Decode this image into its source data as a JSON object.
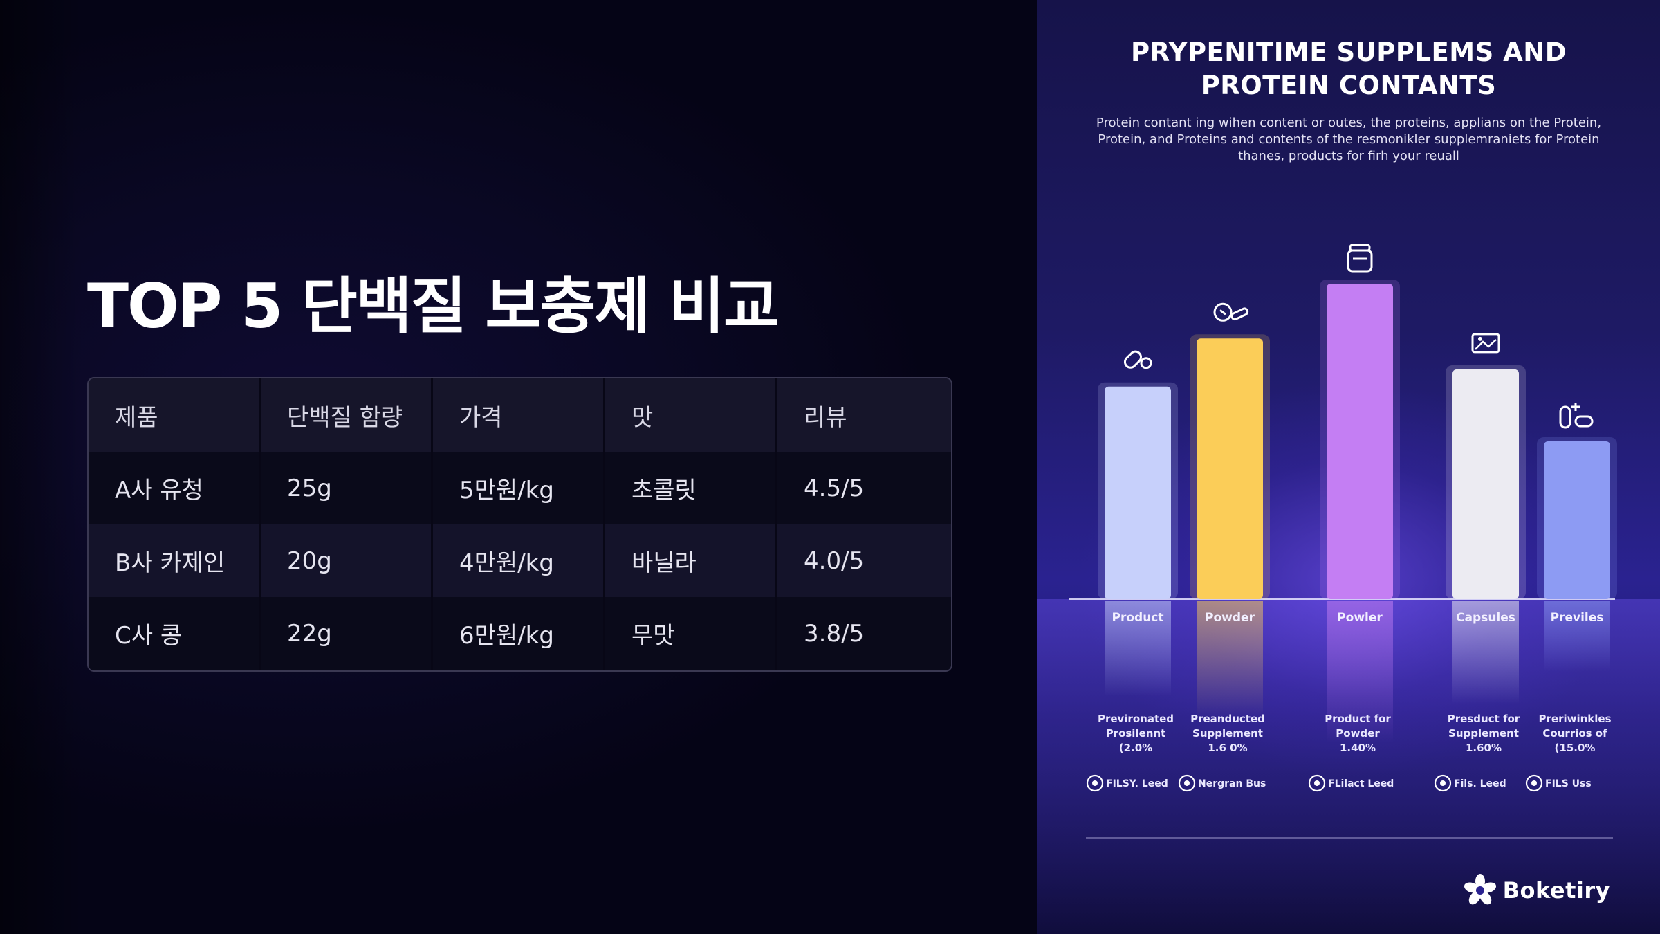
{
  "slide": {
    "title": "TOP 5 단백질 보충제 비교"
  },
  "table": {
    "headers": [
      "제품",
      "단백질 함량",
      "가격",
      "맛",
      "리뷰"
    ],
    "rows": [
      [
        "A사 유청",
        "25g",
        "5만원/kg",
        "초콜릿",
        "4.5/5"
      ],
      [
        "B사 카제인",
        "20g",
        "4만원/kg",
        "바닐라",
        "4.0/5"
      ],
      [
        "C사 콩",
        "22g",
        "6만원/kg",
        "무맛",
        "3.8/5"
      ]
    ]
  },
  "infographic": {
    "title_line1": "PRYPENITIME SUPPLEMS AND",
    "title_line2": "PROTEIN CONTANTS",
    "subtitle": "Protein contant ing wihen content or outes, the proteins, applians on the Protein, Protein, and Proteins and contents of the resmonikler supplemraniets for Protein thanes, products for firh your reuall",
    "brand": "Boketiry"
  },
  "chart_data": {
    "type": "bar",
    "categories": [
      "Product",
      "Powder",
      "Powler",
      "Capsules",
      "Previles"
    ],
    "values": [
      310,
      380,
      460,
      335,
      230
    ],
    "colors": [
      "#c7d0fb",
      "#fbcd58",
      "#c47ef3",
      "#ecebf2",
      "#8d9bf3"
    ],
    "icons": [
      "pill-icon",
      "measuring-cup-icon",
      "protein-jar-icon",
      "image-frame-icon",
      "add-pill-icon"
    ],
    "descriptions": [
      [
        "Previronated",
        "Prosilennt",
        "(2.0%"
      ],
      [
        "Preanducted",
        "Supplement",
        "1.6 0%"
      ],
      [
        "Product for",
        "Powder",
        "1.40%"
      ],
      [
        "Presduct for",
        "Supplement",
        "1.60%"
      ],
      [
        "Preriwinkles",
        "Courrios of",
        "(15.0%"
      ]
    ],
    "footnotes": [
      "FILSY. Leed",
      "Nergran Bus",
      "FLilact Leed",
      "Fils. Leed",
      "FILS Uss"
    ],
    "footnote_icons": [
      "shield-icon",
      "user-icon",
      "star-badge-icon",
      "leaf-badge-icon",
      "box-badge-icon"
    ],
    "ylim": [
      0,
      460
    ],
    "grid": false,
    "legend": "none"
  }
}
